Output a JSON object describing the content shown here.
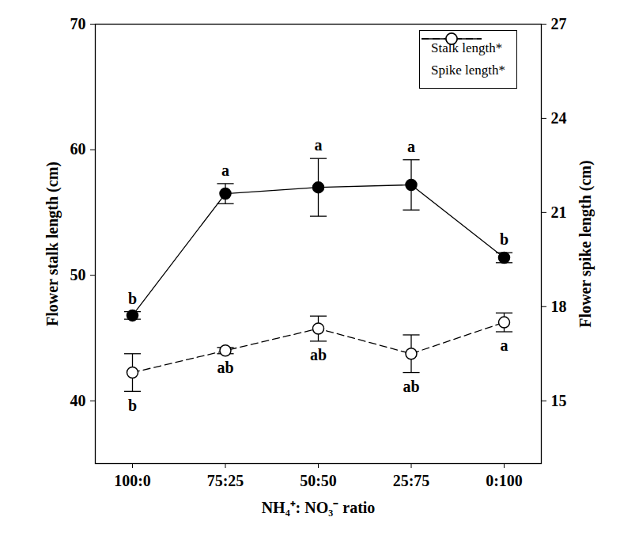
{
  "chart_data": {
    "type": "line",
    "categories": [
      "100:0",
      "75:25",
      "50:50",
      "25:75",
      "0:100"
    ],
    "xlabel": "NH₄⁺: NO₃⁻ ratio",
    "ylabel": "Flower stalk length (cm)",
    "y2label": "Flower spike length (cm)",
    "ylim": [
      35,
      70
    ],
    "yticks": [
      40,
      50,
      60,
      70
    ],
    "y2lim": [
      13,
      27
    ],
    "y2ticks": [
      15,
      18,
      21,
      24,
      27
    ],
    "legend": "top-right",
    "series": [
      {
        "name": "Stalk length*",
        "color": "#000000",
        "marker": "filled_circle",
        "line_style": "solid",
        "values": [
          46.8,
          56.5,
          57.0,
          57.2,
          51.4
        ],
        "errors": [
          0.3,
          0.8,
          2.3,
          2.0,
          0.4
        ],
        "letters": [
          "b",
          "a",
          "a",
          "a",
          "b"
        ]
      },
      {
        "name": "Spike length*",
        "axis": "y2",
        "color": "#000000",
        "marker": "open_circle",
        "line_style": "dashed",
        "values": [
          15.9,
          16.6,
          17.3,
          16.5,
          17.5
        ],
        "errors": [
          0.6,
          0.1,
          0.4,
          0.6,
          0.3
        ],
        "letters": [
          "b",
          "ab",
          "ab",
          "ab",
          "a"
        ]
      }
    ]
  }
}
